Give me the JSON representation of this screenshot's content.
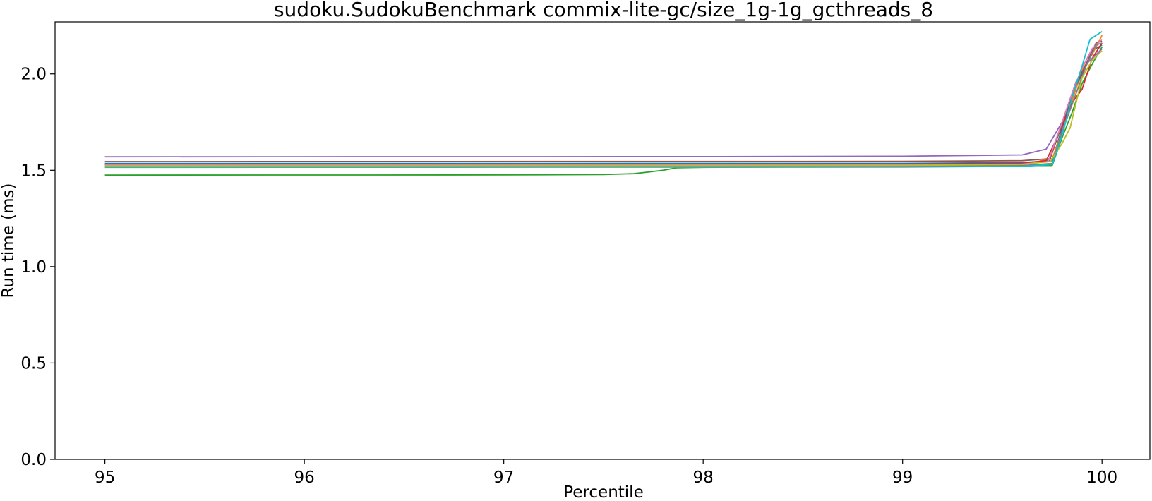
{
  "chart_data": {
    "type": "line",
    "title": "sudoku.SudokuBenchmark commix-lite-gc/size_1g-1g_gcthreads_8",
    "xlabel": "Percentile",
    "ylabel": "Run time (ms)",
    "xlim": [
      94.75,
      100.24
    ],
    "ylim": [
      0.0,
      2.27
    ],
    "xticks": [
      95,
      96,
      97,
      98,
      99,
      100
    ],
    "xtick_labels": [
      "95",
      "96",
      "97",
      "98",
      "99",
      "100"
    ],
    "yticks": [
      0.0,
      0.5,
      1.0,
      1.5,
      2.0
    ],
    "ytick_labels": [
      "0.0",
      "0.5",
      "1.0",
      "1.5",
      "2.0"
    ],
    "grid": false,
    "legend": "none",
    "series": [
      {
        "color": "#1f77b4",
        "x": [
          95,
          99.0,
          99.6,
          99.75,
          99.8,
          99.85,
          99.9,
          99.95,
          100
        ],
        "y": [
          1.535,
          1.536,
          1.54,
          1.55,
          1.72,
          1.88,
          2.0,
          2.12,
          2.15
        ]
      },
      {
        "color": "#ff7f0e",
        "x": [
          95,
          99.0,
          99.6,
          99.75,
          99.8,
          99.85,
          99.9,
          99.95,
          100
        ],
        "y": [
          1.525,
          1.527,
          1.53,
          1.56,
          1.7,
          1.86,
          2.02,
          2.1,
          2.2
        ]
      },
      {
        "color": "#2ca02c",
        "x": [
          95,
          97.0,
          97.5,
          97.65,
          97.72,
          97.8,
          97.87,
          98.0,
          99.0,
          99.75,
          99.8,
          99.85,
          99.9,
          99.95,
          100
        ],
        "y": [
          1.475,
          1.476,
          1.478,
          1.482,
          1.49,
          1.5,
          1.513,
          1.515,
          1.52,
          1.525,
          1.67,
          1.8,
          1.95,
          2.05,
          2.14
        ]
      },
      {
        "color": "#d62728",
        "x": [
          95,
          99.0,
          99.6,
          99.72,
          99.78,
          99.85,
          99.9,
          99.95,
          100
        ],
        "y": [
          1.53,
          1.531,
          1.535,
          1.55,
          1.68,
          1.85,
          1.92,
          2.08,
          2.16
        ]
      },
      {
        "color": "#9467bd",
        "x": [
          95,
          98.0,
          99.0,
          99.6,
          99.72,
          99.8,
          99.87,
          99.93,
          100
        ],
        "y": [
          1.57,
          1.571,
          1.573,
          1.58,
          1.61,
          1.75,
          1.96,
          2.06,
          2.13
        ]
      },
      {
        "color": "#8c564b",
        "x": [
          95,
          99.0,
          99.6,
          99.74,
          99.8,
          99.86,
          99.92,
          99.97,
          100
        ],
        "y": [
          1.545,
          1.546,
          1.55,
          1.56,
          1.74,
          1.92,
          2.05,
          2.16,
          2.17
        ]
      },
      {
        "color": "#e377c2",
        "x": [
          95,
          99.0,
          99.6,
          99.73,
          99.79,
          99.85,
          99.9,
          99.95,
          100
        ],
        "y": [
          1.528,
          1.529,
          1.532,
          1.545,
          1.72,
          1.9,
          2.03,
          2.13,
          2.18
        ]
      },
      {
        "color": "#7f7f7f",
        "x": [
          95,
          99.0,
          99.6,
          99.75,
          99.8,
          99.86,
          99.92,
          99.97,
          100
        ],
        "y": [
          1.52,
          1.521,
          1.524,
          1.535,
          1.7,
          1.87,
          2.04,
          2.15,
          2.16
        ]
      },
      {
        "color": "#bcbd22",
        "x": [
          95,
          99.0,
          99.6,
          99.74,
          99.8,
          99.84,
          99.9,
          99.95,
          100
        ],
        "y": [
          1.523,
          1.525,
          1.53,
          1.545,
          1.64,
          1.72,
          1.98,
          2.07,
          2.12
        ]
      },
      {
        "color": "#17becf",
        "x": [
          95,
          99.0,
          99.6,
          99.75,
          99.8,
          99.85,
          99.9,
          99.94,
          100
        ],
        "y": [
          1.515,
          1.516,
          1.52,
          1.53,
          1.68,
          1.88,
          2.04,
          2.18,
          2.22
        ]
      }
    ]
  }
}
